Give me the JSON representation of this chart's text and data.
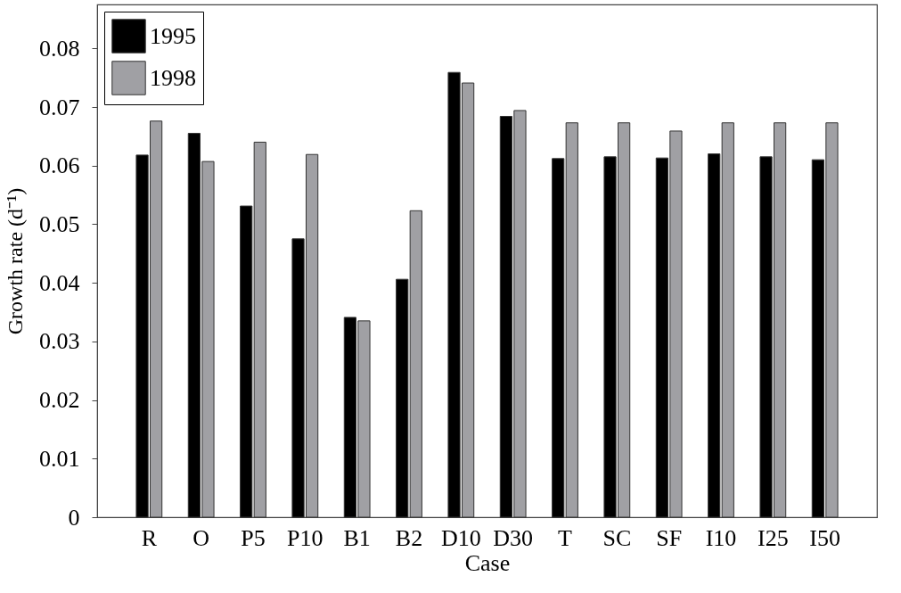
{
  "chart_data": {
    "type": "bar",
    "xlabel": "Case",
    "ylabel": "Growth rate (d⁻¹)",
    "categories": [
      "R",
      "O",
      "P5",
      "P10",
      "B1",
      "B2",
      "D10",
      "D30",
      "T",
      "SC",
      "SF",
      "I10",
      "I25",
      "I50"
    ],
    "series": [
      {
        "name": "1995",
        "color": "#000000",
        "values": [
          0.0618,
          0.0655,
          0.0531,
          0.0475,
          0.0341,
          0.0406,
          0.0759,
          0.0684,
          0.0612,
          0.0615,
          0.0613,
          0.062,
          0.0615,
          0.061
        ]
      },
      {
        "name": "1998",
        "color": "#a0a0a4",
        "values": [
          0.0676,
          0.0607,
          0.064,
          0.0619,
          0.0335,
          0.0523,
          0.0741,
          0.0694,
          0.0673,
          0.0673,
          0.0659,
          0.0673,
          0.0673,
          0.0673
        ]
      }
    ],
    "ylim": [
      0,
      0.0875
    ],
    "yticks": [
      0,
      0.01,
      0.02,
      0.03,
      0.04,
      0.05,
      0.06,
      0.07,
      0.08
    ],
    "grid": false,
    "legend": "top left"
  }
}
